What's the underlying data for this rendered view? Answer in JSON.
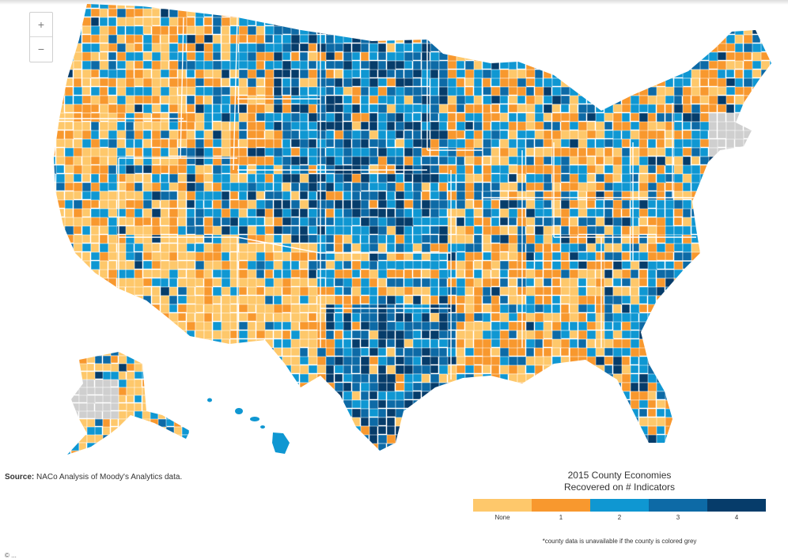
{
  "colors": {
    "none": "#fec86b",
    "one": "#f8982e",
    "two": "#0f97d2",
    "three": "#0d6aa6",
    "four": "#063c6a",
    "grey": "#cfcfcf",
    "border": "#ffffff"
  },
  "zoom": {
    "in": "+",
    "out": "−"
  },
  "source": {
    "label": "Source:",
    "text": " NACo Analysis of Moody's Analytics data."
  },
  "legend": {
    "title": "2015 County Economies",
    "subtitle": "Recovered on # Indicators",
    "items": [
      {
        "label": "None",
        "color": "#fec86b"
      },
      {
        "label": "1",
        "color": "#f8982e"
      },
      {
        "label": "2",
        "color": "#0f97d2"
      },
      {
        "label": "3",
        "color": "#0d6aa6"
      },
      {
        "label": "4",
        "color": "#063c6a"
      }
    ],
    "footnote": "*county data is unavailable if the county is colored grey"
  },
  "bottom_fragment": "© ..."
}
